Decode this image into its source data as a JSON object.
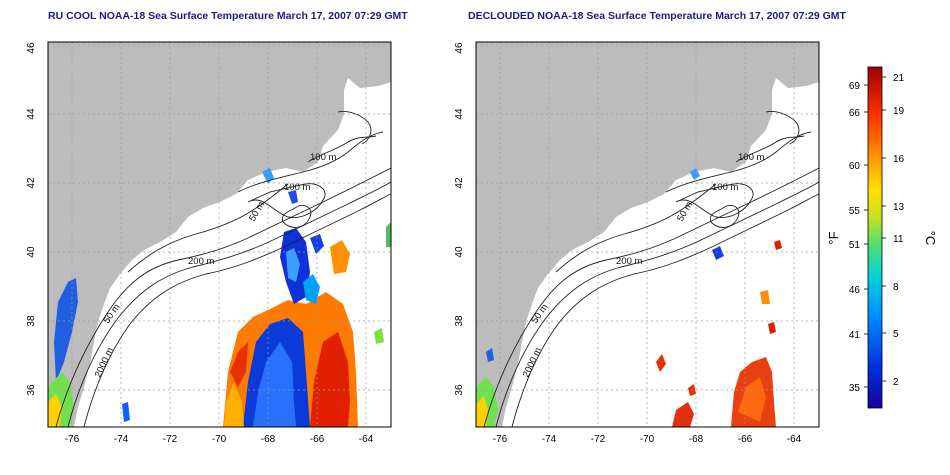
{
  "panels": [
    {
      "title": "RU COOL NOAA-18 Sea Surface Temperature March 17, 2007 07:29 GMT",
      "contour_labels": [
        "100 m",
        "100 m",
        "50 m",
        "200 m",
        "50 m",
        "2000 m"
      ]
    },
    {
      "title": "DECLOUDED NOAA-18 Sea Surface Temperature March 17, 2007 07:29 GMT",
      "contour_labels": [
        "100 m",
        "100 m",
        "50 m",
        "200 m",
        "50 m",
        "2000 m"
      ]
    }
  ],
  "axes": {
    "x_ticks": [
      "-76",
      "-74",
      "-72",
      "-70",
      "-68",
      "-66",
      "-64"
    ],
    "y_ticks": [
      "36",
      "38",
      "40",
      "42",
      "44",
      "46"
    ]
  },
  "colorbar": {
    "left_unit": "°F",
    "right_unit": "°C",
    "fahrenheit_ticks": [
      "69",
      "66",
      "60",
      "55",
      "51",
      "46",
      "41",
      "35"
    ],
    "celsius_ticks": [
      "21",
      "19",
      "16",
      "13",
      "11",
      "8",
      "5",
      "2"
    ]
  },
  "colors": {
    "land": "#bcbcbc",
    "ocean": "#ffffff",
    "title": "#1a1a8c",
    "contour": "#222222",
    "grid": "#9a9a9a"
  }
}
